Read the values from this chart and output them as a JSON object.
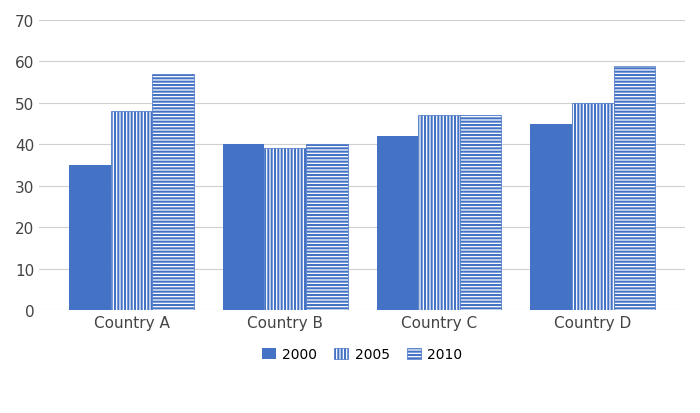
{
  "categories": [
    "Country A",
    "Country B",
    "Country C",
    "Country D"
  ],
  "series": {
    "2000": [
      35,
      40,
      42,
      45
    ],
    "2005": [
      48,
      39,
      47,
      50
    ],
    "2010": [
      57,
      40,
      47,
      59
    ]
  },
  "bar_color": "#4472C4",
  "ylim": [
    0,
    70
  ],
  "yticks": [
    0,
    10,
    20,
    30,
    40,
    50,
    60,
    70
  ],
  "plot_background": "#ffffff",
  "legend_labels": [
    "2000",
    "2005",
    "2010"
  ],
  "bar_width": 0.27,
  "tick_fontsize": 11,
  "label_fontsize": 11
}
